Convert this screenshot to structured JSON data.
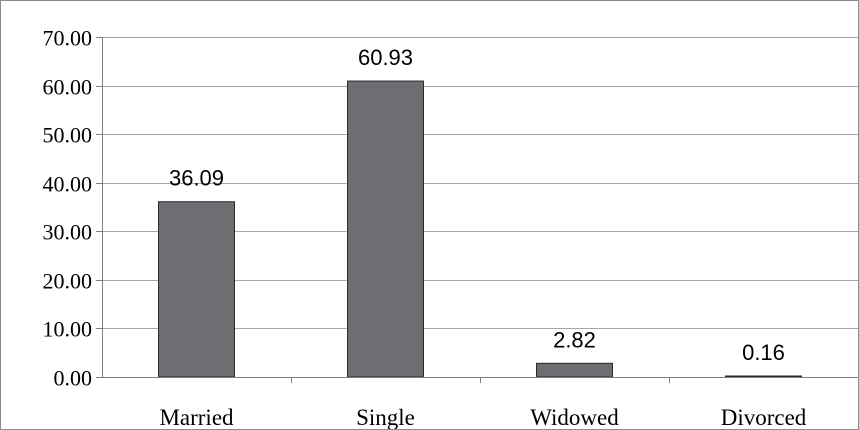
{
  "chart_data": {
    "type": "bar",
    "title": "",
    "xlabel": "",
    "ylabel": "",
    "categories": [
      "Married",
      "Single",
      "Widowed",
      "Divorced"
    ],
    "values": [
      36.09,
      60.93,
      2.82,
      0.16
    ],
    "value_labels": [
      "36.09",
      "60.93",
      "2.82",
      "0.16"
    ],
    "yticks": [
      "0.00",
      "10.00",
      "20.00",
      "30.00",
      "40.00",
      "50.00",
      "60.00",
      "70.00"
    ],
    "ylim": [
      0,
      70
    ],
    "grid": true,
    "legend": "none",
    "colors": {
      "bar": "#6d6e71",
      "bar_edge": "#2b2b2b",
      "grid": "#a6a6a6",
      "axis": "#7f7f7f"
    }
  }
}
